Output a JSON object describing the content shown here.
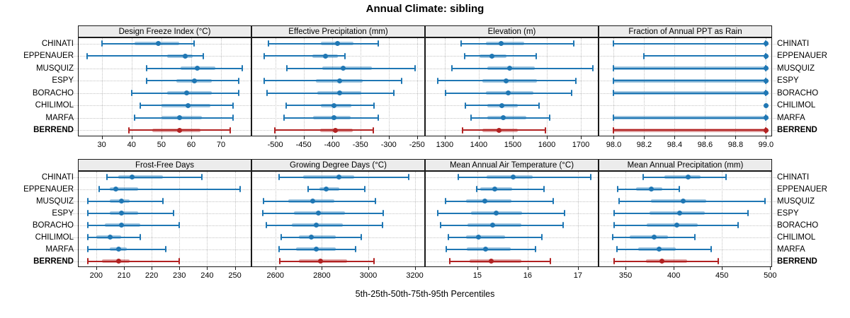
{
  "title": "Annual Climate: sibling",
  "footer_axis_label": "5th-25th-50th-75th-95th Percentiles",
  "stations": [
    "CHINATI",
    "EPPENAUER",
    "MUSQUIZ",
    "ESPY",
    "BORACHO",
    "CHILIMOL",
    "MARFA",
    "BERREND"
  ],
  "highlighted_station": "BERREND",
  "colors": {
    "series_blue": "#1f77b4",
    "highlight_red": "#b22222",
    "strip_bg": "#ececec",
    "panel_border": "#1a1a1a",
    "grid": "#c3c3c3"
  },
  "chart_data": {
    "type": "dotplot",
    "note": "Each row shows [5th,25th,50th,75th,95th] percentiles; thin line 5th-95th, thick band 25th-75th, dot = median",
    "percentile_labels": [
      "5th",
      "25th",
      "50th",
      "75th",
      "95th"
    ],
    "legend_position": "none",
    "grid": "dotted",
    "panels": [
      {
        "title": "Design Freeze Index (°C)",
        "row": 0,
        "col": 0,
        "ticks": [
          30,
          40,
          50,
          60,
          70
        ],
        "tick_labels": [
          "30",
          "40",
          "50",
          "60",
          "70"
        ],
        "xlim": [
          22,
          80.2
        ],
        "series": {
          "CHINATI": [
            30,
            41,
            49,
            56,
            61
          ],
          "EPPENAUER": [
            25,
            52,
            58,
            60.5,
            64
          ],
          "MUSQUIZ": [
            45,
            56.5,
            62,
            68,
            77
          ],
          "ESPY": [
            45,
            55,
            61,
            67,
            76
          ],
          "BORACHO": [
            40,
            52,
            58.5,
            67,
            76
          ],
          "CHILIMOL": [
            43,
            50,
            59,
            66.5,
            74
          ],
          "MARFA": [
            41,
            50,
            56,
            63.5,
            74
          ],
          "BERREND": [
            39,
            47,
            56,
            63,
            73
          ]
        }
      },
      {
        "title": "Effective Precipitation (mm)",
        "row": 0,
        "col": 1,
        "ticks": [
          -500,
          -450,
          -400,
          -350,
          -300,
          -250
        ],
        "tick_labels": [
          "-500",
          "-450",
          "-400",
          "-350",
          "-300",
          "-250"
        ],
        "xlim": [
          -542,
          -236
        ],
        "series": {
          "CHINATI": [
            -512,
            -420,
            -390,
            -362,
            -318
          ],
          "EPPENAUER": [
            -519,
            -434,
            -412,
            -390,
            -377
          ],
          "MUSQUIZ": [
            -480,
            -417,
            -380,
            -330,
            -254
          ],
          "ESPY": [
            -520,
            -428,
            -386,
            -346,
            -277
          ],
          "BORACHO": [
            -514,
            -426,
            -386,
            -348,
            -291
          ],
          "CHILIMOL": [
            -481,
            -420,
            -397,
            -366,
            -326
          ],
          "MARFA": [
            -484,
            -433,
            -397,
            -367,
            -318
          ],
          "BERREND": [
            -501,
            -421,
            -394,
            -364,
            -327
          ]
        }
      },
      {
        "title": "Elevation (m)",
        "row": 0,
        "col": 2,
        "ticks": [
          1300,
          1400,
          1500,
          1600,
          1700
        ],
        "tick_labels": [
          "1300",
          "1400",
          "1500",
          "1600",
          "1700"
        ],
        "xlim": [
          1242,
          1752
        ],
        "series": {
          "CHINATI": [
            1348,
            1420,
            1465,
            1533,
            1679
          ],
          "EPPENAUER": [
            1358,
            1402,
            1438,
            1481,
            1569
          ],
          "MUSQUIZ": [
            1321,
            1425,
            1490,
            1565,
            1735
          ],
          "ESPY": [
            1279,
            1410,
            1480,
            1570,
            1685
          ],
          "BORACHO": [
            1302,
            1420,
            1487,
            1560,
            1673
          ],
          "CHILIMOL": [
            1360,
            1425,
            1467,
            1515,
            1577
          ],
          "MARFA": [
            1377,
            1425,
            1473,
            1540,
            1608
          ],
          "BERREND": [
            1352,
            1410,
            1460,
            1515,
            1596
          ]
        }
      },
      {
        "title": "Fraction of Annual PPT as Rain",
        "row": 0,
        "col": 3,
        "ticks": [
          98.0,
          98.2,
          98.4,
          98.6,
          98.8,
          99.0
        ],
        "tick_labels": [
          "98.0",
          "98.2",
          "98.4",
          "98.6",
          "98.8",
          "99.0"
        ],
        "xlim": [
          97.9,
          99.04
        ],
        "series": {
          "CHINATI": [
            98.0,
            99.0,
            99.0,
            99.0,
            99.0
          ],
          "EPPENAUER": [
            98.2,
            99.0,
            99.0,
            99.0,
            99.0
          ],
          "MUSQUIZ": [
            98.0,
            98.0,
            99.0,
            99.0,
            99.0
          ],
          "ESPY": [
            98.0,
            98.0,
            99.0,
            99.0,
            99.0
          ],
          "BORACHO": [
            98.0,
            98.0,
            99.0,
            99.0,
            99.0
          ],
          "CHILIMOL": [
            99.0,
            99.0,
            99.0,
            99.0,
            99.0
          ],
          "MARFA": [
            98.0,
            98.0,
            99.0,
            99.0,
            99.0
          ],
          "BERREND": [
            98.0,
            98.0,
            99.0,
            99.0,
            99.0
          ]
        }
      },
      {
        "title": "Frost-Free Days",
        "row": 1,
        "col": 0,
        "ticks": [
          200,
          210,
          220,
          230,
          240,
          250
        ],
        "tick_labels": [
          "200",
          "210",
          "220",
          "230",
          "240",
          "250"
        ],
        "xlim": [
          193.4,
          256
        ],
        "series": {
          "CHINATI": [
            204,
            208,
            213,
            224,
            238
          ],
          "EPPENAUER": [
            201,
            205,
            207,
            215,
            252
          ],
          "MUSQUIZ": [
            197,
            205,
            209,
            212,
            224
          ],
          "ESPY": [
            197,
            205,
            209,
            215,
            228
          ],
          "BORACHO": [
            197,
            203,
            209,
            216,
            230
          ],
          "CHILIMOL": [
            197,
            200,
            205,
            209,
            216
          ],
          "MARFA": [
            197,
            205,
            208,
            211,
            225
          ],
          "BERREND": [
            197,
            202,
            208,
            212,
            230
          ]
        }
      },
      {
        "title": "Growing Degree Days (°C)",
        "row": 1,
        "col": 1,
        "ticks": [
          2600,
          2800,
          3000,
          3200
        ],
        "tick_labels": [
          "2600",
          "2800",
          "3000",
          "3200"
        ],
        "xlim": [
          2497,
          3244
        ],
        "series": {
          "CHINATI": [
            2615,
            2720,
            2875,
            2940,
            3175
          ],
          "EPPENAUER": [
            2740,
            2790,
            2820,
            2875,
            2985
          ],
          "MUSQUIZ": [
            2550,
            2655,
            2760,
            2855,
            3030
          ],
          "ESPY": [
            2545,
            2680,
            2785,
            2900,
            3065
          ],
          "BORACHO": [
            2560,
            2670,
            2775,
            2890,
            3060
          ],
          "CHILIMOL": [
            2625,
            2700,
            2755,
            2860,
            2970
          ],
          "MARFA": [
            2615,
            2690,
            2775,
            2860,
            2945
          ],
          "BERREND": [
            2620,
            2700,
            2795,
            2910,
            3025
          ]
        }
      },
      {
        "title": "Mean Annual Air Temperature (°C)",
        "row": 1,
        "col": 2,
        "ticks": [
          15,
          16,
          17
        ],
        "tick_labels": [
          "15",
          "16",
          "17"
        ],
        "xlim": [
          13.96,
          17.41
        ],
        "series": {
          "CHINATI": [
            14.62,
            15.18,
            15.72,
            16.1,
            17.25
          ],
          "EPPENAUER": [
            14.99,
            15.06,
            15.35,
            15.69,
            16.32
          ],
          "MUSQUIZ": [
            14.37,
            14.77,
            15.15,
            15.68,
            16.51
          ],
          "ESPY": [
            14.21,
            14.87,
            15.37,
            15.89,
            16.73
          ],
          "BORACHO": [
            14.27,
            14.8,
            15.31,
            15.87,
            16.7
          ],
          "CHILIMOL": [
            14.42,
            14.77,
            15.03,
            15.55,
            16.28
          ],
          "MARFA": [
            14.38,
            14.79,
            15.17,
            15.66,
            16.15
          ],
          "BERREND": [
            14.45,
            14.85,
            15.28,
            15.87,
            16.45
          ]
        }
      },
      {
        "title": "Mean Annual Precipitation (mm)",
        "row": 1,
        "col": 3,
        "ticks": [
          350,
          400,
          450,
          500
        ],
        "tick_labels": [
          "350",
          "400",
          "450",
          "500"
        ],
        "xlim": [
          322,
          502
        ],
        "series": {
          "CHINATI": [
            368,
            390,
            415,
            428,
            454
          ],
          "EPPENAUER": [
            342,
            361,
            377,
            388,
            406
          ],
          "MUSQUIZ": [
            343,
            376,
            410,
            434,
            495
          ],
          "ESPY": [
            338,
            375,
            406,
            432,
            477
          ],
          "BORACHO": [
            338,
            372,
            403,
            425,
            467
          ],
          "CHILIMOL": [
            337,
            354,
            380,
            394,
            422
          ],
          "MARFA": [
            341,
            363,
            385,
            402,
            439
          ],
          "BERREND": [
            338,
            371,
            388,
            414,
            446
          ]
        }
      }
    ]
  }
}
